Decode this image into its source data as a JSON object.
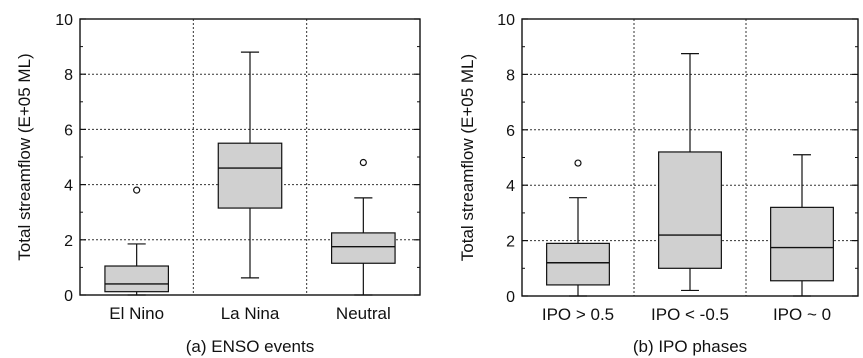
{
  "chart_data": [
    {
      "type": "box",
      "caption": "(a) ENSO events",
      "ylabel": "Total streamflow (E+05 ML)",
      "ylim": [
        0,
        10
      ],
      "yticks": [
        "0",
        "2",
        "4",
        "6",
        "8",
        "10"
      ],
      "grid": true,
      "categories": [
        "El Nino",
        "La Nina",
        "Neutral"
      ],
      "boxes": [
        {
          "whisker_low": 0.0,
          "q1": 0.12,
          "median": 0.4,
          "q3": 1.05,
          "whisker_high": 1.85,
          "outliers": [
            3.8
          ]
        },
        {
          "whisker_low": 0.62,
          "q1": 3.15,
          "median": 4.6,
          "q3": 5.5,
          "whisker_high": 8.8,
          "outliers": []
        },
        {
          "whisker_low": 0.0,
          "q1": 1.15,
          "median": 1.75,
          "q3": 2.25,
          "whisker_high": 3.52,
          "outliers": [
            4.8
          ]
        }
      ]
    },
    {
      "type": "box",
      "caption": "(b) IPO phases",
      "ylabel": "Total streamflow (E+05 ML)",
      "ylim": [
        0,
        10
      ],
      "yticks": [
        "0",
        "2",
        "4",
        "6",
        "8",
        "10"
      ],
      "grid": true,
      "categories": [
        "IPO > 0.5",
        "IPO < -0.5",
        "IPO ~ 0"
      ],
      "boxes": [
        {
          "whisker_low": 0.0,
          "q1": 0.4,
          "median": 1.2,
          "q3": 1.9,
          "whisker_high": 3.55,
          "outliers": [
            4.8
          ]
        },
        {
          "whisker_low": 0.2,
          "q1": 1.0,
          "median": 2.2,
          "q3": 5.2,
          "whisker_high": 8.75,
          "outliers": []
        },
        {
          "whisker_low": 0.0,
          "q1": 0.55,
          "median": 1.75,
          "q3": 3.2,
          "whisker_high": 5.1,
          "outliers": []
        }
      ]
    }
  ],
  "colors": {
    "box_fill": "#d0d0d0",
    "stroke": "#111111",
    "grid": "#333333"
  }
}
